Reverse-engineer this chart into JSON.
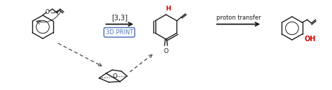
{
  "bg_color": "#ffffff",
  "arrow1_label": "[3,3]",
  "arrow2_label": "proton transfer",
  "box_label": "3D PRINT",
  "box_color": "#5577bb",
  "H_color": "#cc0000",
  "OH_color": "#cc0000",
  "black": "#1a1a1a",
  "figsize": [
    4.74,
    1.29
  ],
  "dpi": 100
}
